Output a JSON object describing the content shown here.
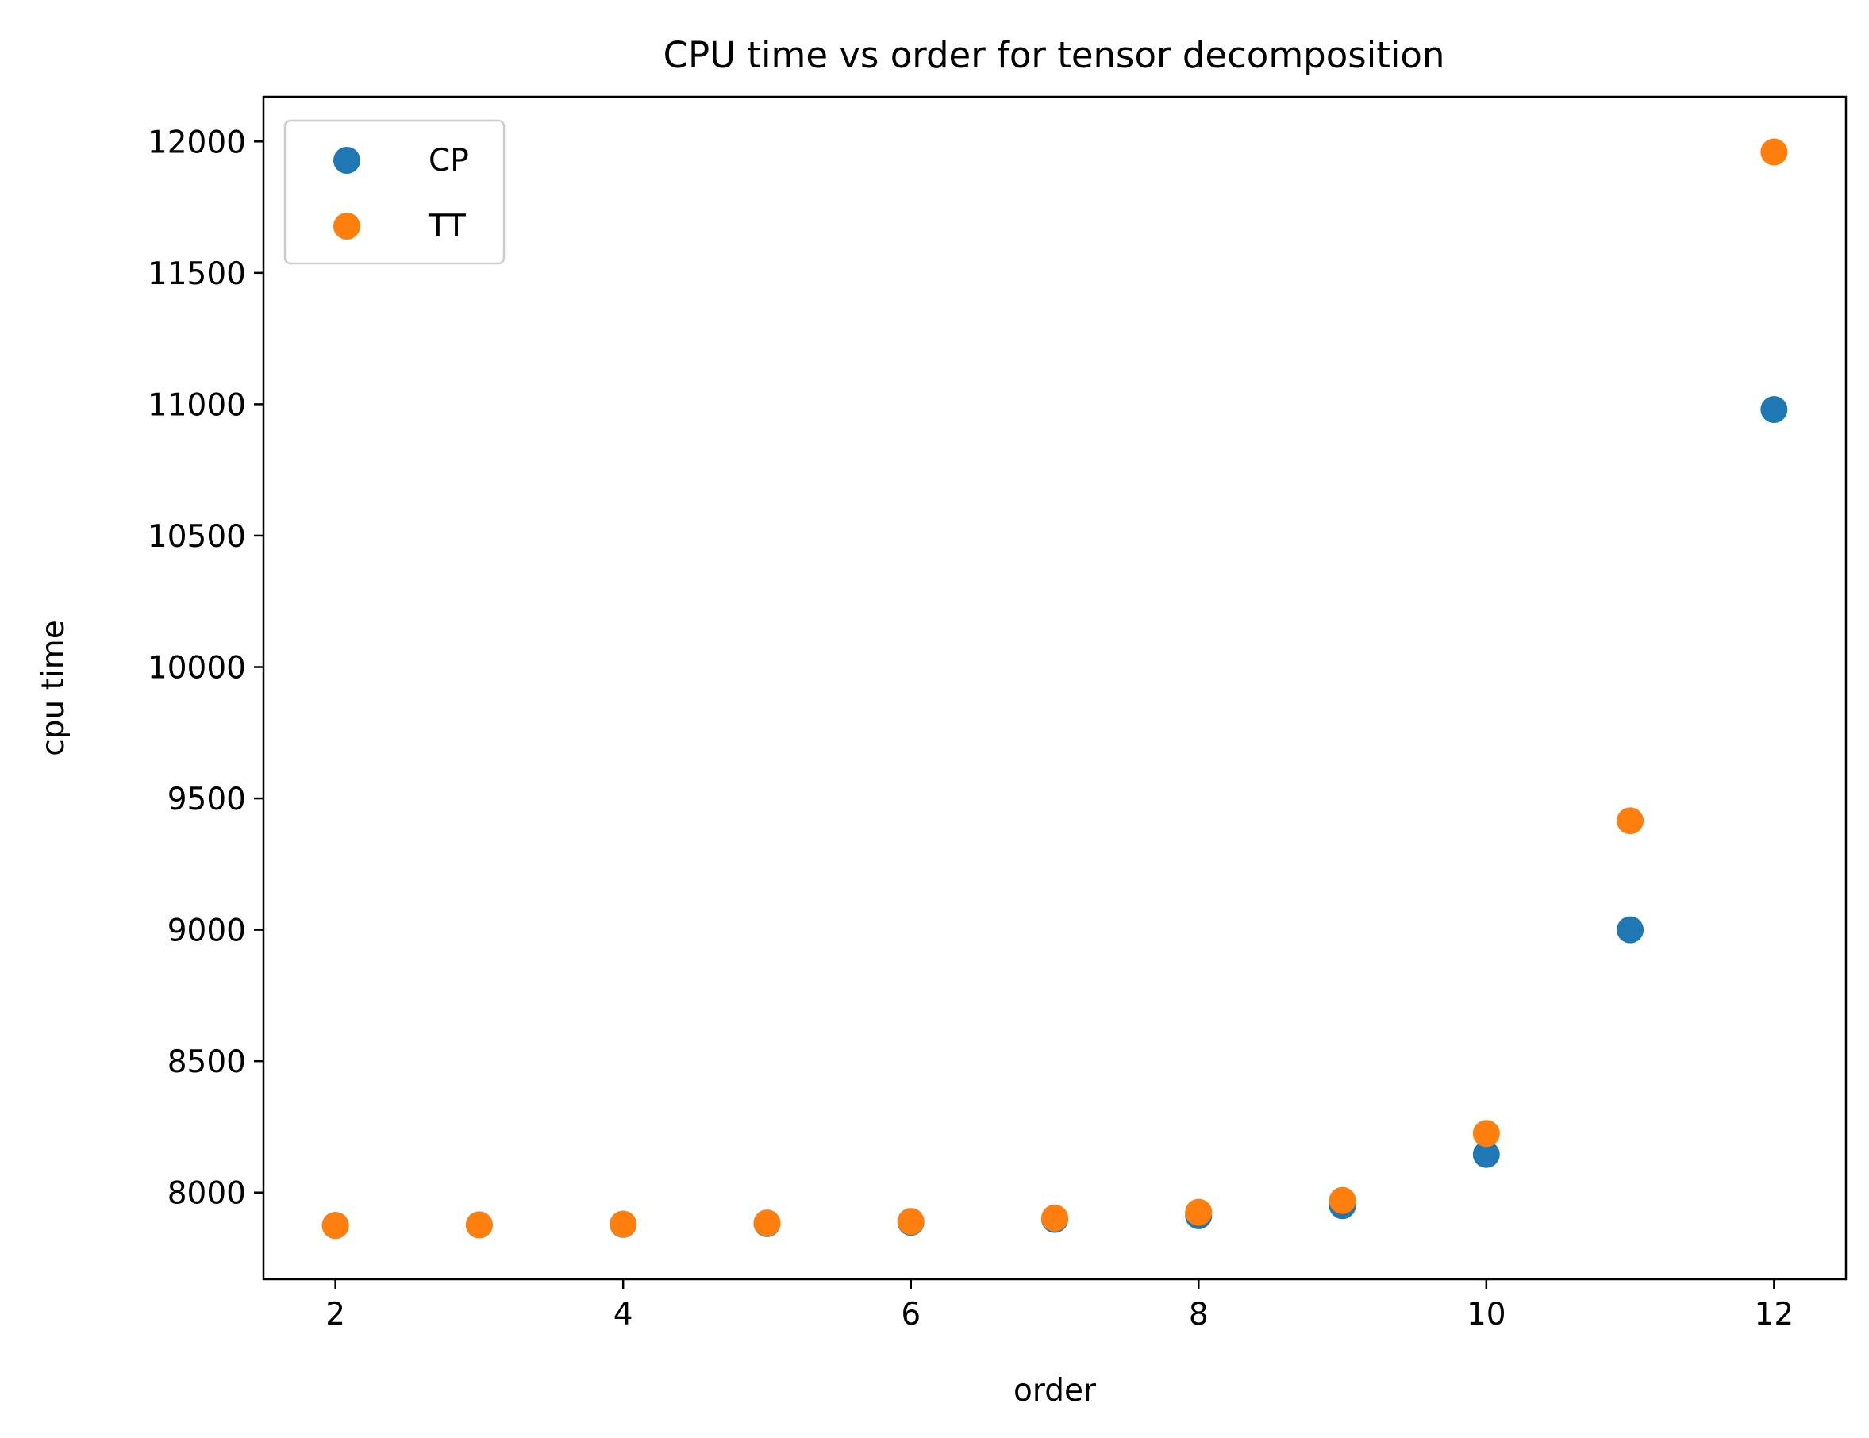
{
  "chart_data": {
    "type": "scatter",
    "title": "CPU time vs order for tensor decomposition",
    "xlabel": "order",
    "ylabel": "cpu time",
    "xlim": [
      1.5,
      12.5
    ],
    "ylim": [
      7670,
      12170
    ],
    "xticks": [
      2,
      4,
      6,
      8,
      10,
      12
    ],
    "yticks": [
      8000,
      8500,
      9000,
      9500,
      10000,
      10500,
      11000,
      11500,
      12000
    ],
    "grid": false,
    "legend_position": "top-left",
    "series": [
      {
        "name": "CP",
        "color": "#1f77b4",
        "x": [
          2,
          3,
          4,
          5,
          6,
          7,
          8,
          9,
          10,
          11,
          12
        ],
        "y": [
          7875,
          7877,
          7879,
          7882,
          7887,
          7898,
          7912,
          7950,
          8145,
          9000,
          10980
        ]
      },
      {
        "name": "TT",
        "color": "#ff7f0e",
        "x": [
          2,
          3,
          4,
          5,
          6,
          7,
          8,
          9,
          10,
          11,
          12
        ],
        "y": [
          7875,
          7877,
          7880,
          7884,
          7890,
          7903,
          7925,
          7970,
          8225,
          9415,
          11960
        ]
      }
    ]
  }
}
